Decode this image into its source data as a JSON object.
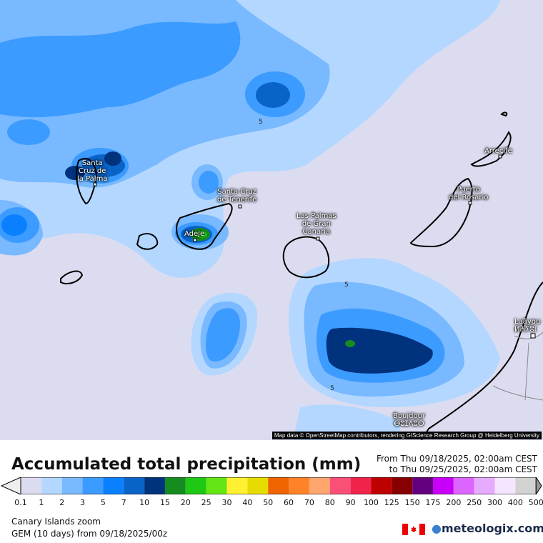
{
  "map": {
    "cities": [
      {
        "name": "Santa Cruz de la Palma",
        "lines": [
          "Santa",
          "Cruz de",
          "la Palma"
        ]
      },
      {
        "name": "Santa Cruz de Tenerife",
        "lines": [
          "Santa Cruz",
          "de Tenerife"
        ]
      },
      {
        "name": "Adeje",
        "lines": [
          "Adeje"
        ]
      },
      {
        "name": "Las Palmas de Gran Canaria",
        "lines": [
          "Las Palmas",
          "de Gran",
          "Canaria"
        ]
      },
      {
        "name": "Puerto del Rosario",
        "lines": [
          "Puerto",
          "del Rosario"
        ]
      },
      {
        "name": "Arrecife",
        "lines": [
          "Arrecife"
        ]
      },
      {
        "name": "Laâyoune",
        "lines": [
          "Laâyou",
          "ⵍⵄⵢⵓⵏ"
        ]
      },
      {
        "name": "Boujdour",
        "lines": [
          "Boujdour",
          "ⴱⵓⵊⴷⵓⵔ"
        ]
      }
    ],
    "contour_labels": [
      "5",
      "5",
      "5"
    ],
    "attribution": "Map data © OpenStreetMap contributors, rendering GIScience Research Group @ Heidelberg University"
  },
  "header": {
    "title": "Accumulated total precipitation (mm)",
    "from": "From Thu 09/18/2025, 02:00am CEST",
    "to": "to Thu 09/25/2025, 02:00am CEST"
  },
  "legend": {
    "ticks": [
      "0.1",
      "1",
      "2",
      "3",
      "5",
      "7",
      "10",
      "15",
      "20",
      "25",
      "30",
      "40",
      "50",
      "60",
      "70",
      "80",
      "90",
      "100",
      "125",
      "150",
      "175",
      "200",
      "250",
      "300",
      "400",
      "500"
    ],
    "colors": [
      "#dcdcf0",
      "#b4d7ff",
      "#78b9ff",
      "#3c9bff",
      "#0a80ff",
      "#0a64c8",
      "#00327d",
      "#168c20",
      "#1ec814",
      "#64e614",
      "#fff032",
      "#e6dc00",
      "#f06400",
      "#ff8228",
      "#ffa56e",
      "#fa5078",
      "#f0234b",
      "#be0000",
      "#870000",
      "#640080",
      "#c800fa",
      "#dc64ff",
      "#e6aaff",
      "#f5e6ff",
      "#d2d2d2"
    ],
    "under_color": "#eeeeee",
    "over_color": "#999999"
  },
  "footer": {
    "region": "Canary Islands zoom",
    "model": "GEM (10 days) from  09/18/2025/00z",
    "brand": "meteologix.com",
    "flag": "canada-flag"
  }
}
